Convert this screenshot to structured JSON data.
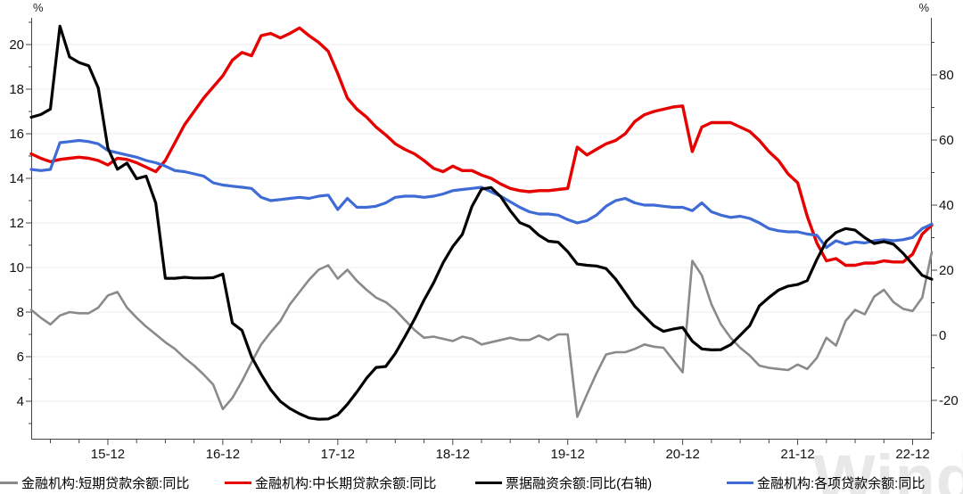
{
  "chart_data": {
    "type": "line",
    "months_total": 95,
    "x_tick_labels": [
      "15-12",
      "16-12",
      "17-12",
      "18-12",
      "19-12",
      "20-12",
      "21-12",
      "22-12"
    ],
    "first_tick_month_index": 8,
    "tick_interval_months": 12,
    "minor_tick_interval_months": 3,
    "grid": "horizontal",
    "legend_position": "bottom",
    "left_axis": {
      "unit": "%",
      "ticks": [
        4,
        6,
        8,
        10,
        12,
        14,
        16,
        18,
        20
      ],
      "minor_step": 1
    },
    "right_axis": {
      "unit": "%",
      "ticks": [
        -20,
        0,
        20,
        40,
        60,
        80
      ],
      "minor_step": 10
    },
    "series": [
      {
        "name": "金融机构:短期贷款余额:同比",
        "axis": "left",
        "color": "#8a8a8a",
        "values": [
          8.1,
          7.75,
          7.45,
          7.85,
          8.0,
          7.95,
          7.95,
          8.2,
          8.75,
          8.9,
          8.2,
          7.75,
          7.35,
          7.0,
          6.65,
          6.35,
          5.95,
          5.6,
          5.2,
          4.75,
          3.65,
          4.15,
          4.9,
          5.75,
          6.55,
          7.1,
          7.6,
          8.35,
          8.9,
          9.45,
          9.9,
          10.1,
          9.5,
          9.9,
          9.4,
          9.0,
          8.65,
          8.45,
          8.1,
          7.65,
          7.2,
          6.85,
          6.9,
          6.8,
          6.7,
          6.9,
          6.8,
          6.55,
          6.65,
          6.75,
          6.85,
          6.75,
          6.75,
          6.95,
          6.75,
          7.0,
          7.0,
          3.3,
          4.3,
          5.25,
          6.1,
          6.2,
          6.2,
          6.35,
          6.55,
          6.45,
          6.4,
          5.85,
          5.3,
          10.3,
          9.65,
          8.35,
          7.45,
          6.85,
          6.4,
          6.05,
          5.6,
          5.5,
          5.45,
          5.4,
          5.65,
          5.45,
          5.95,
          6.85,
          6.5,
          7.6,
          8.1,
          7.9,
          8.7,
          9.0,
          8.45,
          8.15,
          8.05,
          8.65,
          10.7
        ]
      },
      {
        "name": "金融机构:中长期贷款余额:同比",
        "axis": "left",
        "color": "#e60000",
        "values": [
          15.1,
          14.9,
          14.75,
          14.85,
          14.9,
          14.95,
          14.9,
          14.8,
          14.6,
          14.9,
          14.85,
          14.7,
          14.5,
          14.3,
          14.8,
          15.6,
          16.4,
          17.0,
          17.6,
          18.1,
          18.6,
          19.3,
          19.65,
          19.5,
          20.4,
          20.5,
          20.3,
          20.5,
          20.75,
          20.4,
          20.1,
          19.7,
          18.7,
          17.6,
          17.1,
          16.75,
          16.3,
          15.95,
          15.55,
          15.3,
          15.1,
          14.8,
          14.45,
          14.3,
          14.55,
          14.35,
          14.35,
          14.15,
          14.0,
          13.75,
          13.55,
          13.45,
          13.4,
          13.45,
          13.45,
          13.5,
          13.55,
          15.4,
          15.05,
          15.3,
          15.55,
          15.7,
          16.0,
          16.55,
          16.85,
          17.0,
          17.1,
          17.2,
          17.25,
          15.2,
          16.3,
          16.5,
          16.5,
          16.5,
          16.3,
          16.1,
          15.7,
          15.2,
          14.8,
          14.2,
          13.8,
          12.3,
          11.1,
          10.3,
          10.4,
          10.1,
          10.1,
          10.2,
          10.2,
          10.3,
          10.25,
          10.25,
          10.6,
          11.5,
          11.9
        ]
      },
      {
        "name": "票据融资余额:同比(右轴)",
        "axis": "right",
        "color": "#000000",
        "values": [
          67,
          67.8,
          69.5,
          95,
          85.5,
          83.8,
          82.8,
          76,
          57.5,
          51,
          52.9,
          48.1,
          48.9,
          40.6,
          17.5,
          17.5,
          17.8,
          17.6,
          17.6,
          17.7,
          18.8,
          3.75,
          1.5,
          -6.6,
          -12,
          -16.7,
          -20.3,
          -22.5,
          -24.1,
          -25.4,
          -25.8,
          -25.7,
          -24.4,
          -21.2,
          -17.4,
          -13.2,
          -9.9,
          -9.6,
          -5.6,
          -0.5,
          4.9,
          10.8,
          16.1,
          22.3,
          27.3,
          31,
          39.6,
          44.9,
          45.4,
          42.6,
          38.3,
          34.6,
          33.4,
          30.7,
          28.9,
          28.6,
          25.7,
          21.9,
          21.5,
          21.3,
          20.5,
          17.3,
          13.1,
          8.9,
          5.9,
          2.9,
          1.2,
          1.9,
          2.4,
          -1.8,
          -4.2,
          -4.5,
          -4.4,
          -2.9,
          0,
          3,
          9,
          11.6,
          13.9,
          15.1,
          15.6,
          16.8,
          23.3,
          28.9,
          31.6,
          32.8,
          32.3,
          30,
          28.2,
          28.8,
          28,
          25.2,
          21.8,
          18.4,
          17.2
        ]
      },
      {
        "name": "金融机构:各项贷款余额:同比",
        "axis": "left",
        "color": "#3e6bd5",
        "values": [
          14.4,
          14.35,
          14.4,
          15.6,
          15.65,
          15.7,
          15.65,
          15.55,
          15.25,
          15.15,
          15.05,
          14.95,
          14.8,
          14.7,
          14.55,
          14.35,
          14.3,
          14.2,
          14.1,
          13.8,
          13.7,
          13.65,
          13.6,
          13.55,
          13.15,
          13.0,
          13.05,
          13.1,
          13.15,
          13.1,
          13.2,
          13.25,
          12.6,
          13.1,
          12.7,
          12.7,
          12.75,
          12.9,
          13.15,
          13.2,
          13.2,
          13.15,
          13.2,
          13.3,
          13.45,
          13.5,
          13.55,
          13.6,
          13.4,
          13.2,
          12.95,
          12.7,
          12.5,
          12.4,
          12.4,
          12.35,
          12.15,
          12.0,
          12.1,
          12.35,
          12.75,
          13.0,
          13.1,
          12.9,
          12.8,
          12.8,
          12.75,
          12.7,
          12.7,
          12.55,
          12.9,
          12.5,
          12.35,
          12.25,
          12.3,
          12.2,
          12.0,
          11.75,
          11.65,
          11.6,
          11.6,
          11.5,
          11.45,
          10.9,
          11.2,
          11.05,
          11.15,
          11.1,
          11.2,
          11.25,
          11.2,
          11.25,
          11.35,
          11.75,
          11.95
        ]
      }
    ]
  },
  "watermark": {
    "text": "Wind"
  }
}
